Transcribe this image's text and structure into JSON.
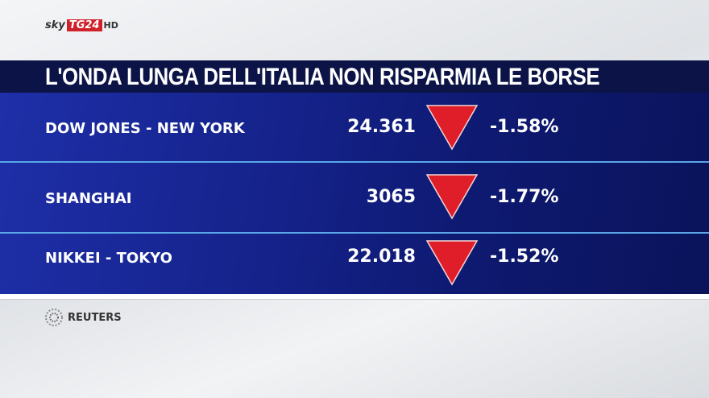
{
  "header": {
    "logo": {
      "brand": "sky",
      "channel": "TG24",
      "quality": "HD"
    },
    "title": "L'ONDA LUNGA DELL'ITALIA NON RISPARMIA LE BORSE"
  },
  "table": {
    "rows": [
      [
        "DOW JONES - NEW YORK",
        "24.361",
        "-1.58%"
      ],
      [
        "SHANGHAI",
        "3065",
        "-1.77%"
      ],
      [
        "NIKKEI - TOKYO",
        "22.018",
        "-1.52%"
      ]
    ]
  },
  "source": "REUTERS"
}
